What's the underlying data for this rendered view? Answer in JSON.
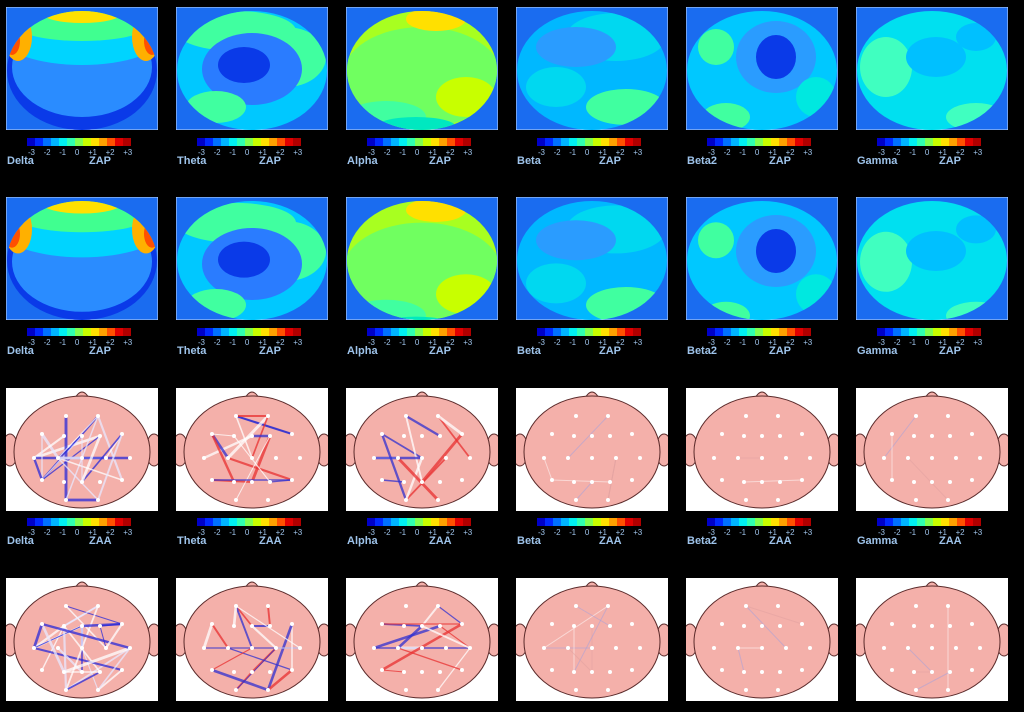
{
  "columns": [
    {
      "band": "Delta",
      "metric_rows": [
        "ZAP",
        "ZAP",
        "ZAA"
      ]
    },
    {
      "band": "Theta",
      "metric_rows": [
        "ZAP",
        "ZAP",
        "ZAA"
      ]
    },
    {
      "band": "Alpha",
      "metric_rows": [
        "ZAP",
        "ZAP",
        "ZAA"
      ]
    },
    {
      "band": "Beta",
      "metric_rows": [
        "ZAP",
        "ZAP",
        "ZAA"
      ]
    },
    {
      "band": "Beta2",
      "metric_rows": [
        "ZAP",
        "ZAP",
        "ZAA"
      ]
    },
    {
      "band": "Gamma",
      "metric_rows": [
        "ZAP",
        "ZAP",
        "ZAA"
      ]
    }
  ],
  "scale_ticks": [
    "-3",
    "-2",
    "-1",
    "0",
    "+1",
    "+2",
    "+3"
  ],
  "colorbar_colors": [
    "#0000c8",
    "#0028ff",
    "#0070ff",
    "#00b4ff",
    "#00f0f0",
    "#30ffb0",
    "#80ff50",
    "#c8ff00",
    "#ffe000",
    "#ffa000",
    "#ff5000",
    "#e00000",
    "#b00000"
  ],
  "colors": {
    "background": "#000000",
    "panel_bg": "#1a6cf0",
    "head": "#f4b0aa",
    "label": "#9ec3ea"
  }
}
